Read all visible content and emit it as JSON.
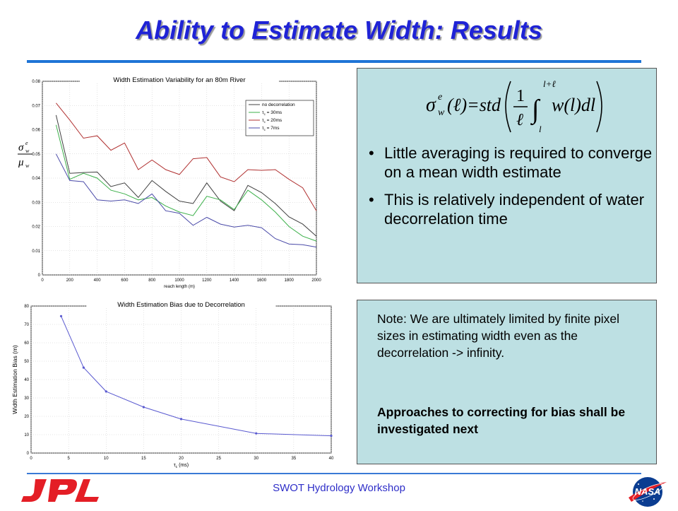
{
  "slide": {
    "title": "Ability to Estimate Width: Results",
    "footer": "SWOT Hydrology Workshop",
    "logo_left": "JPL",
    "logo_right": "NASA"
  },
  "colors": {
    "title": "#1f23d6",
    "rule": "#1f74d6",
    "box_fill": "#bde0e3",
    "footer": "#2e2ec8",
    "jpl_red": "#e41e26",
    "nasa_blue": "#0b3d91"
  },
  "top_panel": {
    "y_label_symbols": "σ / μ",
    "formula_alt": "σ_w^e(ℓ) = std( (1/ℓ) ∫_l^{l+ℓ} w(l) dl )",
    "bullets": [
      "Little averaging is required to converge on a mean width estimate",
      "This is relatively independent of water decorrelation time"
    ]
  },
  "bottom_panel": {
    "note": "Note: We are ultimately limited by finite pixel sizes in estimating width even as the decorrelation -> infinity.",
    "note_bold": "Approaches to correcting for bias shall be investigated next"
  },
  "chart_data": [
    {
      "type": "line",
      "title": "Width Estimation Variability for an 80m River",
      "xlabel": "reach length (m)",
      "ylabel": "",
      "xlim": [
        0,
        2000
      ],
      "ylim": [
        0,
        0.08
      ],
      "xticks": [
        0,
        200,
        400,
        600,
        800,
        1000,
        1200,
        1400,
        1600,
        1800,
        2000
      ],
      "yticks": [
        0,
        0.01,
        0.02,
        0.03,
        0.04,
        0.05,
        0.06,
        0.07,
        0.08
      ],
      "ytick_labels": [
        "0",
        "0.01",
        "0.02",
        "0.03",
        "0.04",
        "0.05",
        "0.06",
        "0.07",
        "0.08"
      ],
      "grid": true,
      "legend_position": "top-right",
      "x": [
        100,
        200,
        300,
        400,
        500,
        600,
        700,
        800,
        900,
        1000,
        1100,
        1200,
        1300,
        1400,
        1500,
        1600,
        1700,
        1800,
        1900,
        2000
      ],
      "series": [
        {
          "name": "no decorrelation",
          "color": "#404040",
          "values": [
            0.066,
            0.042,
            0.0423,
            0.0425,
            0.0365,
            0.038,
            0.032,
            0.039,
            0.0345,
            0.0305,
            0.0295,
            0.038,
            0.0305,
            0.0265,
            0.037,
            0.034,
            0.0295,
            0.024,
            0.021,
            0.016
          ]
        },
        {
          "name": "τ_c = 30ms",
          "color": "#3cb04a",
          "values": [
            0.062,
            0.0395,
            0.042,
            0.04,
            0.035,
            0.0335,
            0.031,
            0.032,
            0.0285,
            0.026,
            0.0245,
            0.0325,
            0.031,
            0.027,
            0.035,
            0.031,
            0.026,
            0.02,
            0.016,
            0.014
          ]
        },
        {
          "name": "τ_c = 20ms",
          "color": "#b03030",
          "values": [
            0.071,
            0.064,
            0.0565,
            0.0575,
            0.0515,
            0.0545,
            0.0435,
            0.0475,
            0.0435,
            0.0415,
            0.048,
            0.0485,
            0.0405,
            0.0385,
            0.0435,
            0.0432,
            0.0435,
            0.0395,
            0.036,
            0.0265
          ]
        },
        {
          "name": "τ_c = 7ms",
          "color": "#4a4aa8",
          "values": [
            0.05,
            0.039,
            0.0385,
            0.031,
            0.0305,
            0.031,
            0.0295,
            0.0335,
            0.0265,
            0.0255,
            0.0205,
            0.0238,
            0.021,
            0.0198,
            0.0205,
            0.0195,
            0.015,
            0.0128,
            0.0125,
            0.0115
          ]
        }
      ]
    },
    {
      "type": "line",
      "title": "Width Estimation Bias due to Decorrelation",
      "xlabel": "τ_c (ms)",
      "ylabel": "Width Estimation Bias (m)",
      "xlim": [
        0,
        40
      ],
      "ylim": [
        0,
        80
      ],
      "xticks": [
        0,
        5,
        10,
        15,
        20,
        25,
        30,
        35,
        40
      ],
      "yticks": [
        0,
        10,
        20,
        30,
        40,
        50,
        60,
        70,
        80
      ],
      "grid": true,
      "series": [
        {
          "name": "",
          "color": "#5a5ad0",
          "x": [
            4,
            7,
            10,
            15,
            20,
            30,
            40
          ],
          "values": [
            74.5,
            46.5,
            33.5,
            25,
            18.5,
            10.7,
            9.4
          ]
        }
      ]
    }
  ]
}
